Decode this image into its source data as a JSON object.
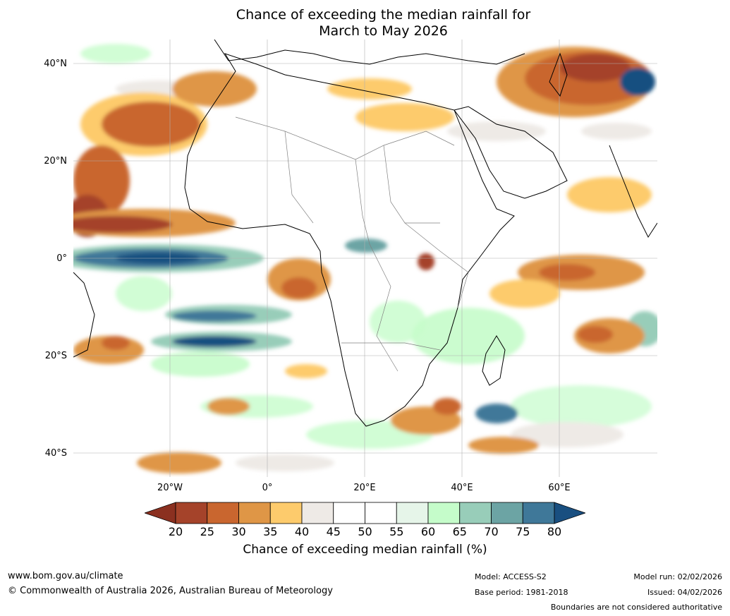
{
  "title": {
    "line1": "Chance of exceeding the median rainfall for",
    "line2": "March to May 2026"
  },
  "map": {
    "lat_labels": [
      "40°N",
      "20°N",
      "0°",
      "20°S",
      "40°S"
    ],
    "lon_labels": [
      "20°W",
      "0°",
      "20°E",
      "40°E",
      "60°E"
    ],
    "ocean_color": "#ffffff",
    "land_outline_color": "#000000",
    "border_color": "#808080",
    "gridline_color": "#b0b0b0"
  },
  "colorbar": {
    "labels": [
      "20",
      "25",
      "30",
      "35",
      "40",
      "45",
      "50",
      "55",
      "60",
      "65",
      "70",
      "75",
      "80"
    ],
    "colors": [
      "#a5432a",
      "#c9662f",
      "#df9646",
      "#fdcb6c",
      "#eeeae6",
      "#ffffff",
      "#ffffff",
      "#e6f5e9",
      "#c5fcca",
      "#98cdb9",
      "#6ca4a4",
      "#3f7899"
    ],
    "below_color": "#8b3020",
    "above_color": "#194f80",
    "title": "Chance of exceeding median rainfall (%)"
  },
  "footer": {
    "website": "www.bom.gov.au/climate",
    "copyright": "© Commonwealth of Australia 2026, Australian Bureau of Meteorology",
    "model": "Model: ACCESS-S2",
    "base_period": "Base period: 1981-2018",
    "model_run": "Model run: 02/02/2026",
    "issued": "Issued: 04/02/2026",
    "disclaimer": "Boundaries are not considered authoritative"
  }
}
